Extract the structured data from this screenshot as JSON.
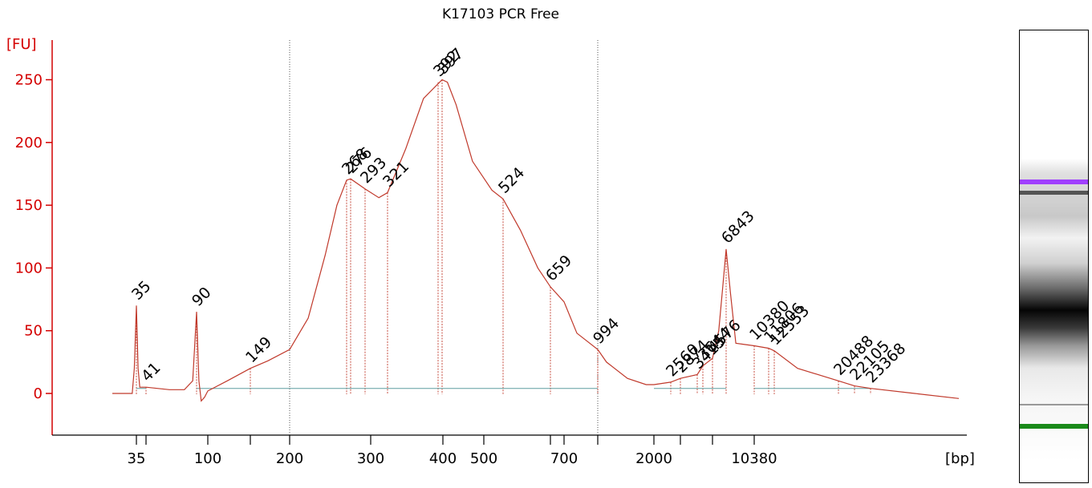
{
  "chart_data": {
    "type": "line",
    "title": "K17103 PCR Free",
    "ylabel": "[FU]",
    "xlabel": "[bp]",
    "ylim": [
      -32,
      276
    ],
    "y_ticks": [
      "0",
      "50",
      "100",
      "150",
      "200",
      "250"
    ],
    "x_ticks": [
      "35",
      "100",
      "200",
      "300",
      "400",
      "500",
      "700",
      "2000",
      "10380"
    ],
    "x_scale": "nonlinear (Bioanalyzer sizing)",
    "grid": false,
    "series": [
      {
        "color": "#c0392b",
        "points": [
          [
            25,
            0
          ],
          [
            33,
            0
          ],
          [
            34,
            20
          ],
          [
            35,
            70
          ],
          [
            36,
            20
          ],
          [
            37,
            5
          ],
          [
            41,
            5
          ],
          [
            50,
            4
          ],
          [
            60,
            3
          ],
          [
            75,
            3
          ],
          [
            85,
            10
          ],
          [
            90,
            65
          ],
          [
            92,
            10
          ],
          [
            94,
            -6
          ],
          [
            97,
            -3
          ],
          [
            100,
            2
          ],
          [
            120,
            10
          ],
          [
            149,
            20
          ],
          [
            170,
            26
          ],
          [
            200,
            35
          ],
          [
            220,
            60
          ],
          [
            240,
            110
          ],
          [
            255,
            150
          ],
          [
            268,
            170
          ],
          [
            276,
            171
          ],
          [
            293,
            163
          ],
          [
            310,
            156
          ],
          [
            321,
            160
          ],
          [
            345,
            195
          ],
          [
            370,
            235
          ],
          [
            397,
            250
          ],
          [
            410,
            248
          ],
          [
            430,
            230
          ],
          [
            470,
            185
          ],
          [
            510,
            162
          ],
          [
            524,
            155
          ],
          [
            570,
            130
          ],
          [
            620,
            100
          ],
          [
            659,
            85
          ],
          [
            700,
            73
          ],
          [
            800,
            48
          ],
          [
            994,
            35
          ],
          [
            1100,
            25
          ],
          [
            1400,
            12
          ],
          [
            1800,
            7
          ],
          [
            2000,
            7
          ],
          [
            2560,
            9
          ],
          [
            2874,
            12
          ],
          [
            3415,
            15
          ],
          [
            3644,
            22
          ],
          [
            4576,
            28
          ],
          [
            5500,
            50
          ],
          [
            6200,
            85
          ],
          [
            6843,
            115
          ],
          [
            7300,
            80
          ],
          [
            7900,
            40
          ],
          [
            9000,
            39
          ],
          [
            10380,
            38
          ],
          [
            11806,
            36
          ],
          [
            12553,
            34
          ],
          [
            15000,
            20
          ],
          [
            20488,
            10
          ],
          [
            22105,
            6
          ],
          [
            23368,
            4
          ],
          [
            30000,
            0
          ],
          [
            40000,
            -4
          ]
        ]
      }
    ],
    "peak_labels": [
      {
        "x": 35,
        "y": 70,
        "label": "35",
        "color": "#1a8a1a"
      },
      {
        "x": 41,
        "y": 5,
        "label": "41"
      },
      {
        "x": 90,
        "y": 65,
        "label": "90"
      },
      {
        "x": 149,
        "y": 20,
        "label": "149"
      },
      {
        "x": 268,
        "y": 170,
        "label": "268"
      },
      {
        "x": 276,
        "y": 171,
        "label": "276"
      },
      {
        "x": 293,
        "y": 163,
        "label": "293"
      },
      {
        "x": 321,
        "y": 160,
        "label": "321"
      },
      {
        "x": 392,
        "y": 248,
        "label": "392"
      },
      {
        "x": 397,
        "y": 250,
        "label": "397"
      },
      {
        "x": 524,
        "y": 155,
        "label": "524"
      },
      {
        "x": 659,
        "y": 85,
        "label": "659"
      },
      {
        "x": 994,
        "y": 35,
        "label": "994"
      },
      {
        "x": 2560,
        "y": 9,
        "label": "2560"
      },
      {
        "x": 2874,
        "y": 12,
        "label": "2874"
      },
      {
        "x": 3415,
        "y": 15,
        "label": "3415"
      },
      {
        "x": 3644,
        "y": 22,
        "label": "3644"
      },
      {
        "x": 4576,
        "y": 28,
        "label": "4576"
      },
      {
        "x": 6843,
        "y": 115,
        "label": "6843"
      },
      {
        "x": 10380,
        "y": 38,
        "label": "10380",
        "color": "#9b30ff"
      },
      {
        "x": 11806,
        "y": 36,
        "label": "11806"
      },
      {
        "x": 12553,
        "y": 34,
        "label": "12553"
      },
      {
        "x": 20488,
        "y": 10,
        "label": "20488"
      },
      {
        "x": 22105,
        "y": 6,
        "label": "22105"
      },
      {
        "x": 23368,
        "y": 4,
        "label": "23368"
      }
    ],
    "dotted_markers": [
      200,
      994
    ],
    "gel_lane": {
      "upper_marker_color": "#a040ff",
      "lower_marker_color": "#1a8a1a"
    }
  }
}
